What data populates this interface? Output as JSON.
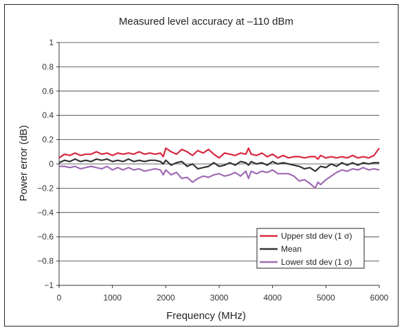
{
  "chart_data": {
    "type": "line",
    "title": "Measured level accuracy at –110 dBm",
    "xlabel": "Frequency (MHz)",
    "ylabel": "Power error (dB)",
    "xlim": [
      0,
      6000
    ],
    "ylim": [
      -1,
      1
    ],
    "x_ticks": [
      "0",
      "1000",
      "2000",
      "3000",
      "4000",
      "5000",
      "6000"
    ],
    "y_ticks": [
      "1",
      "0.8",
      "0.6",
      "0.4",
      "0.2",
      "0",
      "−0.2",
      "−0.4",
      "−0.6",
      "−0.8",
      "−1"
    ],
    "grid": true,
    "legend_position": "bottom-right",
    "x": [
      0,
      100,
      200,
      300,
      400,
      500,
      600,
      700,
      800,
      900,
      1000,
      1100,
      1200,
      1300,
      1400,
      1500,
      1600,
      1700,
      1800,
      1900,
      1950,
      2000,
      2100,
      2200,
      2300,
      2400,
      2500,
      2600,
      2700,
      2800,
      2900,
      3000,
      3100,
      3200,
      3300,
      3400,
      3500,
      3550,
      3600,
      3700,
      3800,
      3900,
      4000,
      4100,
      4200,
      4300,
      4400,
      4500,
      4600,
      4700,
      4800,
      4850,
      4900,
      5000,
      5100,
      5200,
      5300,
      5400,
      5500,
      5600,
      5700,
      5800,
      5900,
      6000
    ],
    "series": [
      {
        "name": "Upper std dev (1 σ)",
        "color": "#d7263d",
        "values": [
          0.05,
          0.08,
          0.07,
          0.09,
          0.07,
          0.08,
          0.08,
          0.1,
          0.08,
          0.09,
          0.07,
          0.09,
          0.08,
          0.09,
          0.08,
          0.1,
          0.08,
          0.09,
          0.08,
          0.09,
          0.06,
          0.13,
          0.1,
          0.08,
          0.12,
          0.1,
          0.07,
          0.11,
          0.09,
          0.12,
          0.08,
          0.05,
          0.09,
          0.08,
          0.07,
          0.09,
          0.08,
          0.13,
          0.08,
          0.07,
          0.09,
          0.06,
          0.08,
          0.05,
          0.07,
          0.05,
          0.06,
          0.06,
          0.05,
          0.06,
          0.06,
          0.04,
          0.07,
          0.05,
          0.06,
          0.05,
          0.06,
          0.05,
          0.07,
          0.05,
          0.06,
          0.05,
          0.07,
          0.13
        ]
      },
      {
        "name": "Mean",
        "color": "#333333",
        "values": [
          0.01,
          0.03,
          0.02,
          0.04,
          0.02,
          0.03,
          0.02,
          0.04,
          0.03,
          0.04,
          0.02,
          0.03,
          0.02,
          0.04,
          0.02,
          0.03,
          0.02,
          0.03,
          0.03,
          0.02,
          0.0,
          0.03,
          -0.01,
          0.01,
          0.02,
          -0.02,
          0.0,
          -0.04,
          -0.03,
          -0.02,
          0.01,
          -0.02,
          -0.01,
          0.01,
          -0.01,
          0.02,
          0.01,
          -0.01,
          0.02,
          0.0,
          0.01,
          -0.01,
          0.02,
          0.0,
          0.01,
          0.0,
          -0.01,
          -0.02,
          -0.04,
          -0.03,
          -0.06,
          -0.04,
          -0.02,
          -0.03,
          0.0,
          -0.02,
          0.01,
          -0.01,
          0.01,
          -0.01,
          0.01,
          0.0,
          0.01,
          0.01
        ]
      },
      {
        "name": "Lower std dev (1 σ)",
        "color": "#a06ab4",
        "values": [
          -0.02,
          -0.02,
          -0.03,
          -0.02,
          -0.04,
          -0.03,
          -0.02,
          -0.03,
          -0.04,
          -0.02,
          -0.05,
          -0.03,
          -0.05,
          -0.03,
          -0.05,
          -0.04,
          -0.06,
          -0.05,
          -0.04,
          -0.05,
          -0.09,
          -0.05,
          -0.09,
          -0.07,
          -0.12,
          -0.11,
          -0.15,
          -0.12,
          -0.1,
          -0.11,
          -0.09,
          -0.08,
          -0.1,
          -0.09,
          -0.07,
          -0.1,
          -0.06,
          -0.12,
          -0.06,
          -0.08,
          -0.06,
          -0.07,
          -0.05,
          -0.08,
          -0.08,
          -0.08,
          -0.1,
          -0.14,
          -0.13,
          -0.16,
          -0.2,
          -0.15,
          -0.17,
          -0.13,
          -0.1,
          -0.07,
          -0.05,
          -0.06,
          -0.04,
          -0.05,
          -0.03,
          -0.05,
          -0.04,
          -0.05
        ]
      }
    ]
  }
}
